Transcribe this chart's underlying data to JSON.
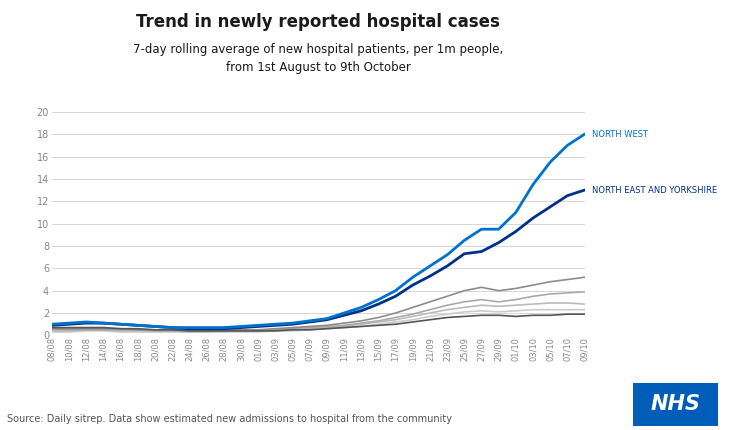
{
  "title": "Trend in newly reported hospital cases",
  "subtitle_line1": "7-day rolling average of new hospital patients, per 1m people,",
  "subtitle_line2": "from 1st August to 9th October",
  "subtitle_super1": "st",
  "subtitle_super2": "th",
  "source": "Source: Daily sitrep. Data show estimated new admissions to hospital from the community",
  "ylim": [
    0,
    20
  ],
  "yticks": [
    0,
    2,
    4,
    6,
    8,
    10,
    12,
    14,
    16,
    18,
    20
  ],
  "dates": [
    "08/08",
    "10/08",
    "12/08",
    "14/08",
    "16/08",
    "18/08",
    "20/08",
    "22/08",
    "24/08",
    "26/08",
    "28/08",
    "30/08",
    "01/09",
    "03/09",
    "05/09",
    "07/09",
    "09/09",
    "11/09",
    "13/09",
    "15/09",
    "17/09",
    "19/09",
    "21/09",
    "23/09",
    "25/09",
    "27/09",
    "29/09",
    "01/10",
    "03/10",
    "05/10",
    "07/10",
    "09/10"
  ],
  "series": {
    "NORTH WEST": {
      "color": "#0072CE",
      "linewidth": 2.0,
      "zorder": 10,
      "values": [
        1.0,
        1.1,
        1.2,
        1.1,
        1.0,
        0.9,
        0.8,
        0.7,
        0.7,
        0.7,
        0.7,
        0.8,
        0.9,
        1.0,
        1.1,
        1.3,
        1.5,
        2.0,
        2.5,
        3.2,
        4.0,
        5.2,
        6.2,
        7.2,
        8.5,
        9.5,
        9.5,
        11.0,
        13.5,
        15.5,
        17.0,
        18.0
      ]
    },
    "NORTH EAST AND YORKSHIRE": {
      "color": "#003087",
      "linewidth": 2.0,
      "zorder": 9,
      "values": [
        0.9,
        1.0,
        1.1,
        1.1,
        1.0,
        0.9,
        0.8,
        0.7,
        0.6,
        0.6,
        0.6,
        0.7,
        0.8,
        0.9,
        1.0,
        1.2,
        1.4,
        1.8,
        2.2,
        2.8,
        3.5,
        4.5,
        5.3,
        6.2,
        7.3,
        7.5,
        8.3,
        9.3,
        10.5,
        11.5,
        12.5,
        13.0
      ]
    },
    "region3": {
      "color": "#8c8c8c",
      "linewidth": 1.2,
      "zorder": 5,
      "values": [
        0.6,
        0.6,
        0.6,
        0.6,
        0.6,
        0.5,
        0.5,
        0.5,
        0.5,
        0.5,
        0.5,
        0.5,
        0.5,
        0.6,
        0.7,
        0.8,
        0.9,
        1.1,
        1.3,
        1.6,
        2.0,
        2.5,
        3.0,
        3.5,
        4.0,
        4.3,
        4.0,
        4.2,
        4.5,
        4.8,
        5.0,
        5.2
      ]
    },
    "region4": {
      "color": "#aaaaaa",
      "linewidth": 1.2,
      "zorder": 4,
      "values": [
        0.5,
        0.5,
        0.5,
        0.5,
        0.5,
        0.5,
        0.4,
        0.4,
        0.4,
        0.4,
        0.4,
        0.5,
        0.5,
        0.5,
        0.6,
        0.7,
        0.8,
        0.9,
        1.1,
        1.3,
        1.6,
        1.9,
        2.3,
        2.7,
        3.0,
        3.2,
        3.0,
        3.2,
        3.5,
        3.7,
        3.8,
        3.9
      ]
    },
    "region5": {
      "color": "#bbbbbb",
      "linewidth": 1.2,
      "zorder": 3,
      "values": [
        0.4,
        0.4,
        0.5,
        0.5,
        0.4,
        0.4,
        0.4,
        0.4,
        0.3,
        0.3,
        0.4,
        0.4,
        0.4,
        0.5,
        0.5,
        0.6,
        0.7,
        0.8,
        1.0,
        1.2,
        1.4,
        1.7,
        2.0,
        2.3,
        2.5,
        2.7,
        2.6,
        2.7,
        2.8,
        2.9,
        2.9,
        2.8
      ]
    },
    "region6": {
      "color": "#cccccc",
      "linewidth": 1.2,
      "zorder": 2,
      "values": [
        0.3,
        0.3,
        0.4,
        0.4,
        0.3,
        0.3,
        0.3,
        0.3,
        0.3,
        0.3,
        0.3,
        0.3,
        0.3,
        0.4,
        0.4,
        0.5,
        0.6,
        0.7,
        0.8,
        1.0,
        1.2,
        1.4,
        1.7,
        1.9,
        2.1,
        2.2,
        2.1,
        2.2,
        2.3,
        2.3,
        2.3,
        2.3
      ]
    },
    "region7": {
      "color": "#555555",
      "linewidth": 1.2,
      "zorder": 6,
      "values": [
        0.7,
        0.7,
        0.7,
        0.7,
        0.6,
        0.6,
        0.5,
        0.5,
        0.4,
        0.4,
        0.4,
        0.4,
        0.4,
        0.4,
        0.5,
        0.5,
        0.6,
        0.7,
        0.8,
        0.9,
        1.0,
        1.2,
        1.4,
        1.6,
        1.7,
        1.8,
        1.8,
        1.7,
        1.8,
        1.8,
        1.9,
        1.9
      ]
    }
  },
  "label_northwest": "NORTH WEST",
  "label_northeast": "NORTH EAST AND YORKSHIRE",
  "nhs_box_color": "#005EB8",
  "nhs_text_color": "#ffffff",
  "background_color": "#ffffff",
  "grid_color": "#d0d0d0",
  "tick_color": "#888888",
  "title_fontsize": 12,
  "subtitle_fontsize": 8.5,
  "source_fontsize": 7,
  "label_fontsize": 6,
  "ytick_fontsize": 7,
  "xtick_fontsize": 6
}
